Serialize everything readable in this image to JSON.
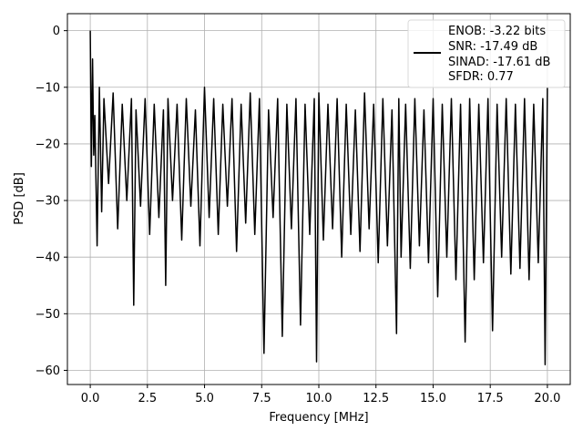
{
  "chart_data": {
    "type": "line",
    "title": "",
    "xlabel": "Frequency [MHz]",
    "ylabel": "PSD [dB]",
    "xlim": [
      -1,
      21
    ],
    "ylim": [
      -62.5,
      3
    ],
    "grid": true,
    "legend_placement": "top-right",
    "x_ticks": [
      0,
      2.5,
      5,
      7.5,
      10,
      12.5,
      15,
      17.5,
      20
    ],
    "x_tick_labels": [
      "0.0",
      "2.5",
      "5.0",
      "7.5",
      "10.0",
      "12.5",
      "15.0",
      "17.5",
      "20.0"
    ],
    "y_ticks": [
      0,
      -10,
      -20,
      -30,
      -40,
      -50,
      -60
    ],
    "y_tick_labels": [
      "0",
      "−10",
      "−20",
      "−30",
      "−40",
      "−50",
      "−60"
    ],
    "legend": {
      "lines": [
        "ENOB: -3.22 bits",
        "SNR: -17.49 dB",
        "SINAD: -17.61 dB",
        "SFDR: 0.77"
      ]
    },
    "series": [
      {
        "color": "#000000",
        "x": [
          0.0,
          0.05,
          0.1,
          0.15,
          0.2,
          0.3,
          0.4,
          0.5,
          0.6,
          0.8,
          1.0,
          1.2,
          1.4,
          1.6,
          1.8,
          1.9,
          2.0,
          2.2,
          2.4,
          2.6,
          2.8,
          3.0,
          3.2,
          3.3,
          3.4,
          3.6,
          3.8,
          4.0,
          4.2,
          4.4,
          4.6,
          4.8,
          5.0,
          5.2,
          5.4,
          5.6,
          5.8,
          6.0,
          6.2,
          6.4,
          6.6,
          6.8,
          7.0,
          7.2,
          7.4,
          7.6,
          7.8,
          8.0,
          8.2,
          8.4,
          8.6,
          8.8,
          9.0,
          9.2,
          9.4,
          9.6,
          9.8,
          9.9,
          10.0,
          10.2,
          10.4,
          10.6,
          10.8,
          11.0,
          11.2,
          11.4,
          11.6,
          11.8,
          12.0,
          12.2,
          12.4,
          12.6,
          12.8,
          13.0,
          13.2,
          13.4,
          13.5,
          13.6,
          13.8,
          14.0,
          14.2,
          14.4,
          14.6,
          14.8,
          15.0,
          15.2,
          15.4,
          15.6,
          15.8,
          16.0,
          16.2,
          16.4,
          16.6,
          16.8,
          17.0,
          17.2,
          17.4,
          17.6,
          17.8,
          18.0,
          18.2,
          18.4,
          18.6,
          18.8,
          19.0,
          19.2,
          19.4,
          19.6,
          19.8,
          19.9,
          20.0
        ],
        "y": [
          0,
          -24,
          -5,
          -22,
          -15,
          -38,
          -10,
          -32,
          -12,
          -27,
          -11,
          -35,
          -13,
          -30,
          -12,
          -48.5,
          -14,
          -31,
          -12,
          -36,
          -13,
          -33,
          -14,
          -45,
          -12,
          -30,
          -13,
          -37,
          -12,
          -31,
          -14,
          -38,
          -10,
          -33,
          -12,
          -36,
          -13,
          -31,
          -12,
          -39,
          -13,
          -34,
          -11,
          -36,
          -12,
          -57,
          -14,
          -33,
          -12,
          -54,
          -13,
          -35,
          -12,
          -52,
          -13,
          -36,
          -12,
          -58.5,
          -11,
          -37,
          -13,
          -35,
          -12,
          -40,
          -13,
          -36,
          -14,
          -39,
          -11,
          -35,
          -13,
          -41,
          -12,
          -38,
          -14,
          -53.5,
          -12,
          -40,
          -13,
          -42,
          -12,
          -38,
          -14,
          -41,
          -12,
          -47,
          -13,
          -40,
          -12,
          -44,
          -13,
          -55,
          -12,
          -44,
          -13,
          -41,
          -12,
          -53,
          -13,
          -40,
          -12,
          -43,
          -13,
          -42,
          -12,
          -44,
          -13,
          -41,
          -12,
          -59,
          -10
        ]
      }
    ]
  }
}
